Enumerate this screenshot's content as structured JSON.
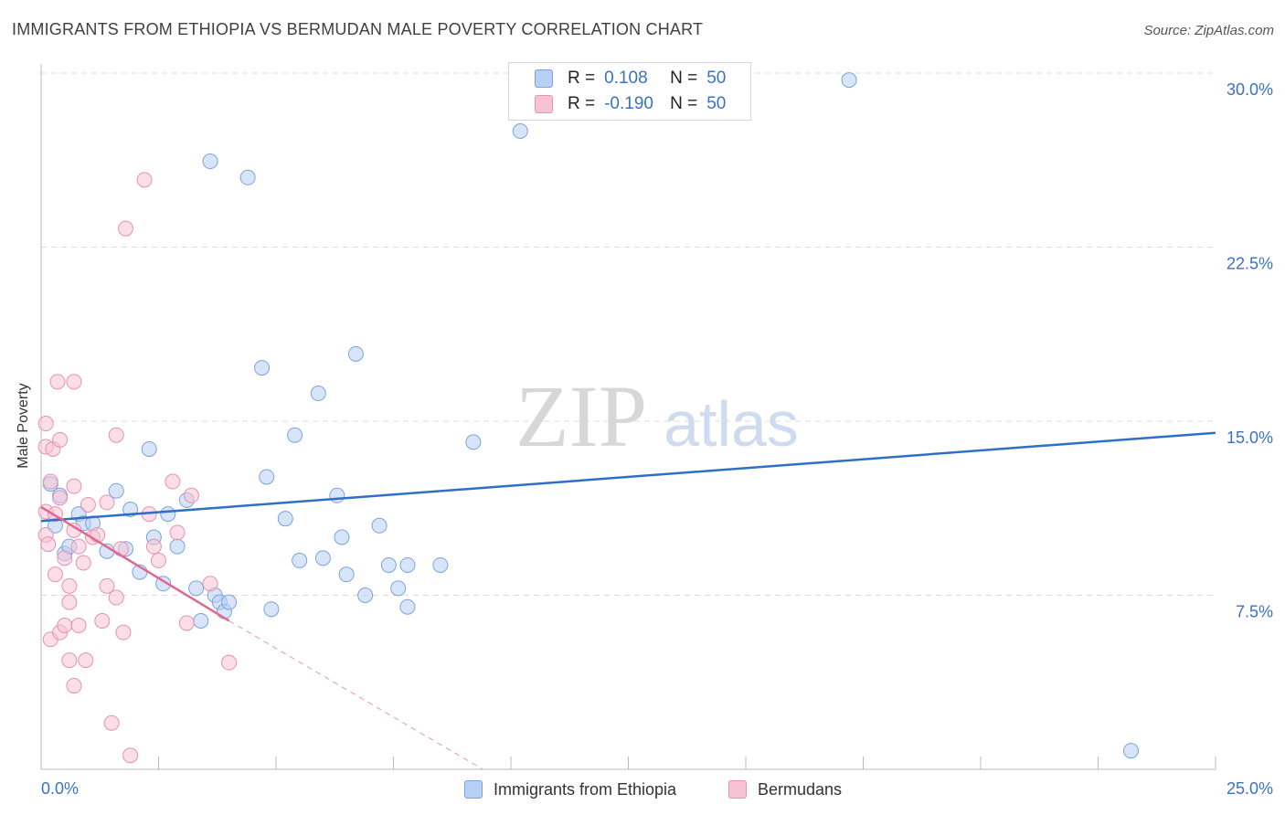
{
  "title": "IMMIGRANTS FROM ETHIOPIA VS BERMUDAN MALE POVERTY CORRELATION CHART",
  "source": "Source: ZipAtlas.com",
  "watermark": {
    "zip": "ZIP",
    "atlas": "atlas"
  },
  "legend": {
    "r_label": "R =",
    "n_label": "N =",
    "rows": [
      {
        "r": "0.108",
        "n": "50"
      },
      {
        "r": "-0.190",
        "n": "50"
      }
    ]
  },
  "colors": {
    "blue_fill": "#b8d0f4",
    "blue_stroke": "#7aa3de",
    "blue_line": "#2f6fc8",
    "pink_fill": "#f7c3d4",
    "pink_stroke": "#e592b0",
    "pink_line": "#e06890",
    "grid": "#dcdcdc",
    "tick_label": "#3a72c4"
  },
  "chart_data": {
    "type": "scatter",
    "title": "IMMIGRANTS FROM ETHIOPIA VS BERMUDAN MALE POVERTY CORRELATION CHART",
    "xlabel": "",
    "ylabel": "Male Poverty",
    "xlim": [
      0,
      25
    ],
    "ylim": [
      0,
      30
    ],
    "x_tick_labels": [
      "0.0%",
      "25.0%"
    ],
    "y_ticks": [
      7.5,
      15.0,
      22.5,
      30.0
    ],
    "y_tick_labels": [
      "7.5%",
      "15.0%",
      "22.5%",
      "30.0%"
    ],
    "grid": true,
    "legend_position": "top-center",
    "series": [
      {
        "name": "Immigrants from Ethiopia",
        "color": "blue",
        "trend": {
          "x0": 0.0,
          "y0": 10.7,
          "x1": 25.0,
          "y1": 14.5,
          "style": "solid"
        },
        "points": [
          [
            0.2,
            12.3
          ],
          [
            0.3,
            10.5
          ],
          [
            0.4,
            11.8
          ],
          [
            0.5,
            9.3
          ],
          [
            0.6,
            9.6
          ],
          [
            0.8,
            11.0
          ],
          [
            0.9,
            10.6
          ],
          [
            1.1,
            10.6
          ],
          [
            1.4,
            9.4
          ],
          [
            1.6,
            12.0
          ],
          [
            1.8,
            9.5
          ],
          [
            1.9,
            11.2
          ],
          [
            2.1,
            8.5
          ],
          [
            2.3,
            13.8
          ],
          [
            2.4,
            10.0
          ],
          [
            2.6,
            8.0
          ],
          [
            2.7,
            11.0
          ],
          [
            2.9,
            9.6
          ],
          [
            3.1,
            11.6
          ],
          [
            3.3,
            7.8
          ],
          [
            3.4,
            6.4
          ],
          [
            3.6,
            26.2
          ],
          [
            3.7,
            7.5
          ],
          [
            3.8,
            7.2
          ],
          [
            3.9,
            6.8
          ],
          [
            4.0,
            7.2
          ],
          [
            4.4,
            25.5
          ],
          [
            4.7,
            17.3
          ],
          [
            4.8,
            12.6
          ],
          [
            4.9,
            6.9
          ],
          [
            5.2,
            10.8
          ],
          [
            5.4,
            14.4
          ],
          [
            5.5,
            9.0
          ],
          [
            5.9,
            16.2
          ],
          [
            6.0,
            9.1
          ],
          [
            6.3,
            11.8
          ],
          [
            6.4,
            10.0
          ],
          [
            6.5,
            8.4
          ],
          [
            6.7,
            17.9
          ],
          [
            6.9,
            7.5
          ],
          [
            7.2,
            10.5
          ],
          [
            7.4,
            8.8
          ],
          [
            7.6,
            7.8
          ],
          [
            7.8,
            8.8
          ],
          [
            7.8,
            7.0
          ],
          [
            8.5,
            8.8
          ],
          [
            9.2,
            14.1
          ],
          [
            10.2,
            27.5
          ],
          [
            17.2,
            29.7
          ],
          [
            23.2,
            0.8
          ]
        ]
      },
      {
        "name": "Bermudans",
        "color": "pink",
        "trend": {
          "x0": 0.0,
          "y0": 11.3,
          "x1": 4.0,
          "y1": 6.4,
          "dash_to_x": 9.4,
          "dash_to_y": 0.0,
          "style": "solid+dashed"
        },
        "points": [
          [
            0.1,
            11.1
          ],
          [
            0.1,
            10.1
          ],
          [
            0.1,
            14.9
          ],
          [
            0.1,
            13.9
          ],
          [
            0.15,
            9.7
          ],
          [
            0.2,
            5.6
          ],
          [
            0.2,
            12.4
          ],
          [
            0.25,
            13.8
          ],
          [
            0.3,
            11.0
          ],
          [
            0.3,
            8.4
          ],
          [
            0.35,
            16.7
          ],
          [
            0.4,
            11.7
          ],
          [
            0.4,
            14.2
          ],
          [
            0.4,
            5.9
          ],
          [
            0.5,
            9.1
          ],
          [
            0.5,
            6.2
          ],
          [
            0.6,
            7.9
          ],
          [
            0.6,
            7.2
          ],
          [
            0.6,
            4.7
          ],
          [
            0.7,
            3.6
          ],
          [
            0.7,
            16.7
          ],
          [
            0.7,
            12.2
          ],
          [
            0.7,
            10.3
          ],
          [
            0.8,
            9.6
          ],
          [
            0.8,
            6.2
          ],
          [
            0.9,
            8.9
          ],
          [
            0.95,
            4.7
          ],
          [
            1.0,
            11.4
          ],
          [
            1.1,
            10.0
          ],
          [
            1.2,
            10.1
          ],
          [
            1.3,
            6.4
          ],
          [
            1.4,
            7.9
          ],
          [
            1.4,
            11.5
          ],
          [
            1.5,
            2.0
          ],
          [
            1.6,
            7.4
          ],
          [
            1.6,
            14.4
          ],
          [
            1.7,
            9.5
          ],
          [
            1.75,
            5.9
          ],
          [
            1.8,
            23.3
          ],
          [
            1.9,
            0.6
          ],
          [
            2.2,
            25.4
          ],
          [
            2.3,
            11.0
          ],
          [
            2.4,
            9.6
          ],
          [
            2.5,
            9.0
          ],
          [
            2.8,
            12.4
          ],
          [
            2.9,
            10.2
          ],
          [
            3.1,
            6.3
          ],
          [
            3.2,
            11.8
          ],
          [
            3.6,
            8.0
          ],
          [
            4.0,
            4.6
          ]
        ]
      }
    ]
  }
}
